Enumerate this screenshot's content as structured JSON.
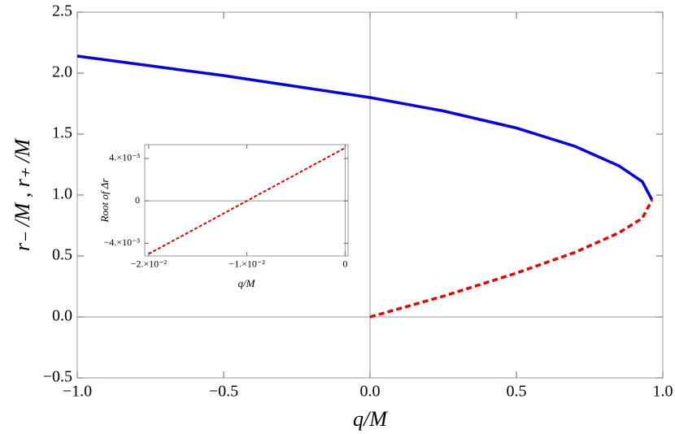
{
  "chart_data": [
    {
      "type": "line",
      "xlabel": "q/M",
      "ylabel": "r₋ /M , r₊ /M",
      "xlim": [
        -1.0,
        1.0
      ],
      "ylim": [
        -0.5,
        2.5
      ],
      "xticks": [
        {
          "value": -1.0,
          "label": "−1.0"
        },
        {
          "value": -0.5,
          "label": "−0.5"
        },
        {
          "value": 0,
          "label": "0.0"
        },
        0.5,
        {
          "value": 1.0,
          "label": "1.0"
        }
      ],
      "yticks": [
        {
          "value": -0.5,
          "label": "−0.5"
        },
        {
          "value": 0,
          "label": "0.0"
        },
        0.5,
        {
          "value": 1.0,
          "label": "1.0"
        },
        1.5,
        {
          "value": 2.0,
          "label": "2.0"
        },
        2.5
      ],
      "series": [
        {
          "color": "#0000ee",
          "dashed": false,
          "x": [
            -1,
            -0.75,
            -0.5,
            -0.25,
            0,
            0.25,
            0.5,
            0.7,
            0.85,
            0.93,
            0.963
          ],
          "values": [
            2.14,
            2.06,
            1.98,
            1.89,
            1.8,
            1.69,
            1.55,
            1.4,
            1.24,
            1.11,
            0.96
          ]
        },
        {
          "color": "#ee0000",
          "dashed": true,
          "x": [
            0,
            0.25,
            0.5,
            0.7,
            0.85,
            0.93,
            0.963
          ],
          "values": [
            0,
            0.17,
            0.36,
            0.53,
            0.69,
            0.81,
            0.96
          ]
        }
      ]
    },
    {
      "type": "line",
      "xlabel": "q/M",
      "ylabel": "Root of Δr",
      "xlim": [
        -0.0204,
        0.0003
      ],
      "ylim": [
        -0.0052,
        0.0053
      ],
      "xticks": [
        {
          "value": -0.02,
          "label": "−2.×10⁻²"
        },
        {
          "value": -0.01,
          "label": "−1.×10⁻²"
        },
        0
      ],
      "yticks": [
        {
          "value": -0.004,
          "label": "−4.×10⁻³"
        },
        0,
        {
          "value": 0.004,
          "label": "4.×10⁻³"
        }
      ],
      "series": [
        {
          "color": "#ee0000",
          "dashed": true,
          "x": [
            -0.02,
            0
          ],
          "values": [
            -0.005,
            0.005
          ]
        }
      ]
    }
  ]
}
